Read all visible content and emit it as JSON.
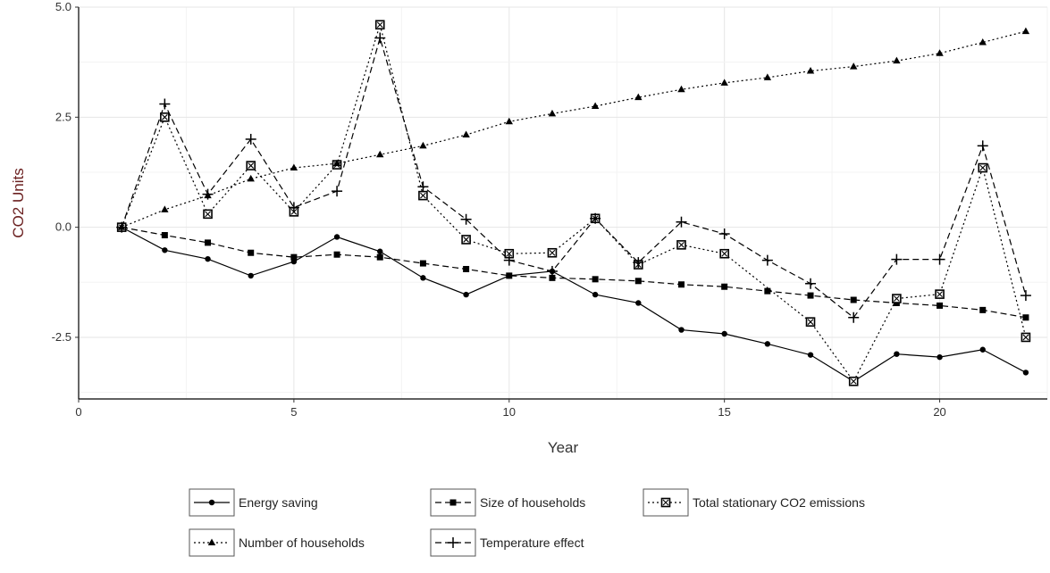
{
  "chart_data": {
    "type": "line",
    "title": "",
    "xlabel": "Year",
    "ylabel": "CO2 Units",
    "xlim": [
      0,
      22.5
    ],
    "ylim": [
      -3.9,
      5.0
    ],
    "x_ticks": [
      0,
      5,
      10,
      15,
      20
    ],
    "y_ticks": [
      -2.5,
      0.0,
      2.5,
      5.0
    ],
    "x_tick_labels": [
      "0",
      "5",
      "10",
      "15",
      "20"
    ],
    "y_tick_labels": [
      "-2.5",
      "0.0",
      "2.5",
      "5.0"
    ],
    "grid": true,
    "legend_position": "bottom",
    "x": [
      1,
      2,
      3,
      4,
      5,
      6,
      7,
      8,
      9,
      10,
      11,
      12,
      13,
      14,
      15,
      16,
      17,
      18,
      19,
      20,
      21,
      22
    ],
    "series": [
      {
        "name": "Energy saving",
        "linetype": "solid",
        "marker": "dot",
        "values": [
          0.0,
          -0.52,
          -0.72,
          -1.1,
          -0.78,
          -0.22,
          -0.55,
          -1.15,
          -1.53,
          -1.1,
          -1.0,
          -1.53,
          -1.72,
          -2.33,
          -2.42,
          -2.65,
          -2.9,
          -3.5,
          -2.88,
          -2.95,
          -2.78,
          -3.3
        ]
      },
      {
        "name": "Size of households",
        "linetype": "dashed",
        "marker": "square",
        "values": [
          0.0,
          -0.18,
          -0.35,
          -0.58,
          -0.68,
          -0.62,
          -0.68,
          -0.82,
          -0.95,
          -1.1,
          -1.15,
          -1.18,
          -1.22,
          -1.3,
          -1.35,
          -1.45,
          -1.55,
          -1.65,
          -1.72,
          -1.78,
          -1.88,
          -2.05
        ]
      },
      {
        "name": "Total stationary CO2 emissions",
        "linetype": "dotted",
        "marker": "boxed-x",
        "values": [
          0.0,
          2.5,
          0.3,
          1.4,
          0.35,
          1.42,
          4.6,
          0.72,
          -0.28,
          -0.6,
          -0.58,
          0.2,
          -0.85,
          -0.4,
          -0.6,
          null,
          -2.15,
          -3.5,
          -1.62,
          -1.52,
          1.35,
          -2.5
        ]
      },
      {
        "name": "Number of households",
        "linetype": "dotted",
        "marker": "triangle",
        "values": [
          0.0,
          0.4,
          0.72,
          1.1,
          1.35,
          1.45,
          1.65,
          1.85,
          2.1,
          2.4,
          2.58,
          2.75,
          2.95,
          3.13,
          3.28,
          3.4,
          3.55,
          3.65,
          3.78,
          3.95,
          4.2,
          4.45
        ]
      },
      {
        "name": "Temperature effect",
        "linetype": "dashed",
        "marker": "plus",
        "values": [
          0.0,
          2.8,
          0.75,
          2.0,
          0.45,
          0.82,
          4.3,
          0.92,
          0.18,
          -0.75,
          -1.0,
          0.2,
          -0.8,
          0.12,
          -0.15,
          -0.75,
          -1.28,
          -2.05,
          -0.73,
          -0.73,
          1.85,
          -1.55
        ]
      }
    ]
  }
}
